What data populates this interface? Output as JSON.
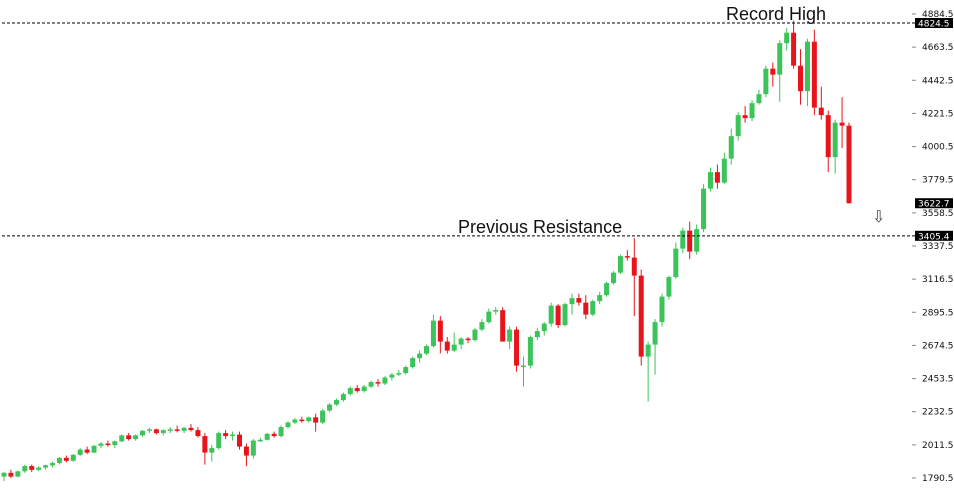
{
  "chart_data": {
    "type": "candlestick",
    "colors": {
      "up": "#3cc45a",
      "down": "#e8141c",
      "line": "#000000",
      "tag_bg": "#000000",
      "tag_text": "#ffffff"
    },
    "ylim": [
      1700,
      4880
    ],
    "y_ticks": [
      "4884.5",
      "4663.5",
      "4442.5",
      "4221.5",
      "4000.5",
      "3779.5",
      "3558.5",
      "3337.5",
      "3116.5",
      "2895.5",
      "2674.5",
      "2453.5",
      "2232.5",
      "2011.5",
      "1790.5"
    ],
    "levels": [
      {
        "value": 4824.5,
        "tag": "4824.5",
        "annotation": "Record High"
      },
      {
        "value": 3405.4,
        "tag": "3405.4",
        "annotation": "Previous Resistance"
      }
    ],
    "last_price": {
      "value": 3622.7,
      "tag": "3622.7"
    },
    "arrow": {
      "icon": "down-arrow-icon",
      "glyph": "⇩"
    },
    "candles": [
      [
        1800,
        1830,
        1770,
        1825
      ],
      [
        1825,
        1845,
        1790,
        1800
      ],
      [
        1800,
        1840,
        1795,
        1835
      ],
      [
        1835,
        1880,
        1825,
        1870
      ],
      [
        1870,
        1880,
        1830,
        1845
      ],
      [
        1845,
        1870,
        1835,
        1860
      ],
      [
        1860,
        1880,
        1845,
        1875
      ],
      [
        1875,
        1900,
        1860,
        1890
      ],
      [
        1890,
        1930,
        1880,
        1925
      ],
      [
        1925,
        1940,
        1895,
        1905
      ],
      [
        1905,
        1950,
        1900,
        1945
      ],
      [
        1945,
        1990,
        1935,
        1980
      ],
      [
        1980,
        2000,
        1950,
        1960
      ],
      [
        1960,
        2010,
        1955,
        2005
      ],
      [
        2005,
        2030,
        1990,
        2020
      ],
      [
        2020,
        2040,
        2000,
        2010
      ],
      [
        2010,
        2040,
        1990,
        2035
      ],
      [
        2035,
        2080,
        2030,
        2075
      ],
      [
        2075,
        2090,
        2040,
        2050
      ],
      [
        2050,
        2080,
        2040,
        2075
      ],
      [
        2075,
        2110,
        2065,
        2105
      ],
      [
        2105,
        2125,
        2090,
        2115
      ],
      [
        2115,
        2120,
        2080,
        2090
      ],
      [
        2090,
        2115,
        2075,
        2110
      ],
      [
        2110,
        2130,
        2090,
        2115
      ],
      [
        2115,
        2140,
        2095,
        2105
      ],
      [
        2105,
        2130,
        2090,
        2125
      ],
      [
        2125,
        2150,
        2100,
        2110
      ],
      [
        2110,
        2130,
        2060,
        2070
      ],
      [
        2070,
        2090,
        1880,
        1960
      ],
      [
        1960,
        2010,
        1900,
        1990
      ],
      [
        1990,
        2100,
        1980,
        2090
      ],
      [
        2090,
        2110,
        2050,
        2070
      ],
      [
        2070,
        2100,
        2040,
        2080
      ],
      [
        2080,
        2100,
        1980,
        2000
      ],
      [
        2000,
        2020,
        1870,
        1940
      ],
      [
        1940,
        2050,
        1920,
        2040
      ],
      [
        2040,
        2060,
        2030,
        2045
      ],
      [
        2045,
        2090,
        2040,
        2085
      ],
      [
        2085,
        2100,
        2060,
        2070
      ],
      [
        2070,
        2140,
        2060,
        2130
      ],
      [
        2130,
        2170,
        2120,
        2160
      ],
      [
        2160,
        2190,
        2150,
        2180
      ],
      [
        2180,
        2200,
        2160,
        2170
      ],
      [
        2170,
        2200,
        2160,
        2195
      ],
      [
        2195,
        2220,
        2100,
        2160
      ],
      [
        2160,
        2250,
        2150,
        2240
      ],
      [
        2240,
        2290,
        2230,
        2280
      ],
      [
        2280,
        2320,
        2270,
        2310
      ],
      [
        2310,
        2360,
        2300,
        2350
      ],
      [
        2350,
        2400,
        2340,
        2390
      ],
      [
        2390,
        2410,
        2360,
        2370
      ],
      [
        2370,
        2410,
        2360,
        2400
      ],
      [
        2400,
        2440,
        2390,
        2430
      ],
      [
        2430,
        2450,
        2400,
        2420
      ],
      [
        2420,
        2470,
        2410,
        2460
      ],
      [
        2460,
        2490,
        2440,
        2480
      ],
      [
        2480,
        2510,
        2470,
        2490
      ],
      [
        2490,
        2540,
        2480,
        2530
      ],
      [
        2530,
        2600,
        2520,
        2590
      ],
      [
        2590,
        2640,
        2560,
        2620
      ],
      [
        2620,
        2680,
        2610,
        2670
      ],
      [
        2670,
        2880,
        2660,
        2840
      ],
      [
        2840,
        2870,
        2620,
        2700
      ],
      [
        2700,
        2730,
        2620,
        2640
      ],
      [
        2640,
        2760,
        2630,
        2680
      ],
      [
        2680,
        2730,
        2650,
        2720
      ],
      [
        2720,
        2730,
        2690,
        2710
      ],
      [
        2710,
        2790,
        2700,
        2780
      ],
      [
        2780,
        2850,
        2770,
        2830
      ],
      [
        2830,
        2920,
        2820,
        2900
      ],
      [
        2900,
        2930,
        2880,
        2910
      ],
      [
        2910,
        2930,
        2700,
        2700
      ],
      [
        2700,
        2800,
        2650,
        2780
      ],
      [
        2780,
        2800,
        2500,
        2540
      ],
      [
        2540,
        2600,
        2400,
        2540
      ],
      [
        2540,
        2740,
        2520,
        2730
      ],
      [
        2730,
        2790,
        2710,
        2770
      ],
      [
        2770,
        2830,
        2740,
        2820
      ],
      [
        2820,
        2960,
        2800,
        2940
      ],
      [
        2940,
        2950,
        2790,
        2810
      ],
      [
        2810,
        2960,
        2800,
        2950
      ],
      [
        2950,
        3020,
        2880,
        2990
      ],
      [
        2990,
        3020,
        2940,
        2960
      ],
      [
        2960,
        3010,
        2850,
        2880
      ],
      [
        2880,
        2980,
        2870,
        2970
      ],
      [
        2970,
        3030,
        2950,
        3010
      ],
      [
        3010,
        3100,
        3000,
        3090
      ],
      [
        3090,
        3170,
        3080,
        3160
      ],
      [
        3160,
        3280,
        3150,
        3270
      ],
      [
        3270,
        3310,
        3240,
        3260
      ],
      [
        3260,
        3390,
        2870,
        3140
      ],
      [
        3140,
        3180,
        2540,
        2600
      ],
      [
        2600,
        2700,
        2300,
        2680
      ],
      [
        2680,
        2850,
        2480,
        2830
      ],
      [
        2830,
        3020,
        2800,
        3000
      ],
      [
        3000,
        3140,
        2980,
        3130
      ],
      [
        3130,
        3360,
        3120,
        3320
      ],
      [
        3320,
        3460,
        3290,
        3440
      ],
      [
        3440,
        3500,
        3250,
        3300
      ],
      [
        3300,
        3480,
        3280,
        3450
      ],
      [
        3450,
        3750,
        3430,
        3720
      ],
      [
        3720,
        3860,
        3700,
        3830
      ],
      [
        3830,
        3880,
        3720,
        3760
      ],
      [
        3760,
        3960,
        3750,
        3920
      ],
      [
        3920,
        4120,
        3880,
        4070
      ],
      [
        4070,
        4230,
        4040,
        4210
      ],
      [
        4210,
        4270,
        4160,
        4190
      ],
      [
        4190,
        4310,
        4170,
        4290
      ],
      [
        4290,
        4380,
        4280,
        4350
      ],
      [
        4350,
        4540,
        4330,
        4520
      ],
      [
        4520,
        4560,
        4400,
        4480
      ],
      [
        4480,
        4710,
        4300,
        4690
      ],
      [
        4690,
        4790,
        4640,
        4760
      ],
      [
        4760,
        4840,
        4520,
        4540
      ],
      [
        4540,
        4650,
        4280,
        4370
      ],
      [
        4370,
        4720,
        4270,
        4700
      ],
      [
        4700,
        4780,
        4210,
        4260
      ],
      [
        4260,
        4400,
        4180,
        4210
      ],
      [
        4210,
        4240,
        3830,
        3930
      ],
      [
        3930,
        4180,
        3820,
        4160
      ],
      [
        4160,
        4330,
        3990,
        4140
      ],
      [
        4140,
        4160,
        3620,
        3622.7
      ]
    ]
  }
}
